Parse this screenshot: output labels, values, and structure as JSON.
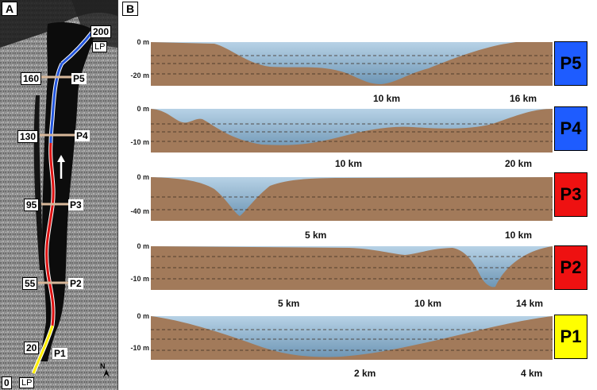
{
  "panel_a": {
    "letter": "A",
    "km_markers": [
      "200",
      "160",
      "130",
      "95",
      "55",
      "20",
      "0"
    ],
    "profile_tags": [
      "P5",
      "P4",
      "P3",
      "P2",
      "P1"
    ],
    "lp_top": "LP",
    "lp_bottom": "LP",
    "north": "N",
    "colors": {
      "blue": "#2255dd",
      "red": "#dd1111",
      "yellow": "#ffee00",
      "transect": "#d8b89a"
    }
  },
  "panel_b": {
    "letter": "B",
    "profiles": [
      {
        "label": "P5",
        "color": "#1e5cff",
        "depth_ticks": [
          "0 m",
          "-20 m"
        ],
        "dist_ticks": [
          "10 km",
          "16 km"
        ]
      },
      {
        "label": "P4",
        "color": "#1e5cff",
        "depth_ticks": [
          "0 m",
          "-10 m"
        ],
        "dist_ticks": [
          "10 km",
          "20 km"
        ]
      },
      {
        "label": "P3",
        "color": "#ee1111",
        "depth_ticks": [
          "0 m",
          "-40 m"
        ],
        "dist_ticks": [
          "5 km",
          "10 km"
        ]
      },
      {
        "label": "P2",
        "color": "#ee1111",
        "depth_ticks": [
          "0 m",
          "-10 m"
        ],
        "dist_ticks": [
          "5 km",
          "10 km",
          "14 km"
        ]
      },
      {
        "label": "P1",
        "color": "#ffff00",
        "depth_ticks": [
          "0 m",
          "-10 m"
        ],
        "dist_ticks": [
          "2 km",
          "4 km"
        ]
      }
    ],
    "colors": {
      "land": "#a27a5a",
      "water_top": "#b7d2e6",
      "water_bottom": "#6e96b5",
      "grid": "#3a2a1e"
    }
  }
}
